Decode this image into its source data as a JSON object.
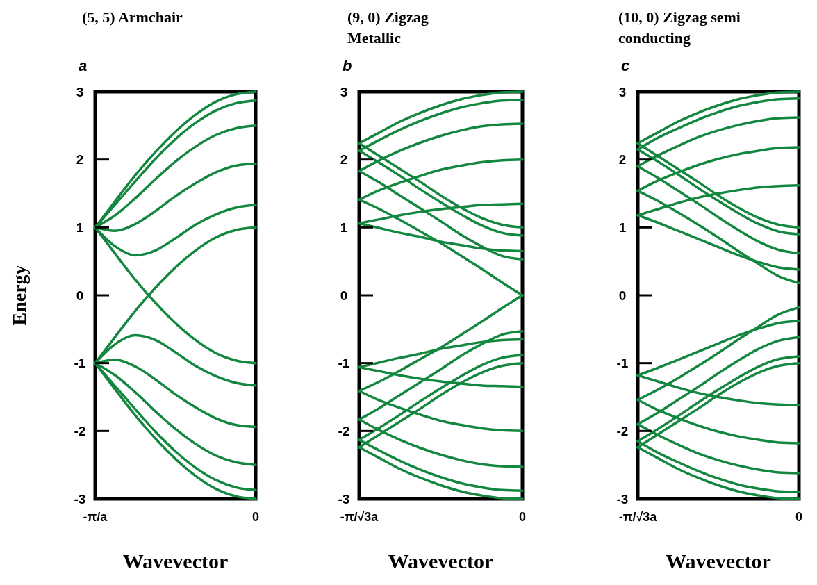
{
  "chart_data": [
    {
      "type": "line",
      "title": "(5, 5) Armchair",
      "xlabel": "Wavevector",
      "ylabel": "Energy",
      "annotations": [
        "a"
      ],
      "color": "#13873f",
      "categories": [
        "-π/a",
        null,
        null,
        null,
        null,
        null,
        null,
        null,
        "0"
      ],
      "ylim": [
        -3,
        3
      ],
      "yticks": [
        -3,
        -2,
        -1,
        0,
        1,
        2,
        3
      ],
      "series": [
        {
          "values": [
            1,
            1.39,
            1.77,
            2.11,
            2.41,
            2.66,
            2.85,
            2.96,
            3
          ]
        },
        {
          "values": [
            1,
            1.34,
            1.68,
            2.01,
            2.3,
            2.54,
            2.72,
            2.83,
            2.87
          ]
        },
        {
          "values": [
            1,
            1.18,
            1.43,
            1.71,
            1.97,
            2.19,
            2.36,
            2.46,
            2.5
          ]
        },
        {
          "values": [
            1,
            0.95,
            1.05,
            1.24,
            1.46,
            1.65,
            1.81,
            1.91,
            1.94
          ]
        },
        {
          "values": [
            1,
            0.72,
            0.59,
            0.66,
            0.84,
            1.04,
            1.19,
            1.29,
            1.33
          ]
        },
        {
          "values": [
            1,
            0.61,
            0.23,
            -0.11,
            -0.41,
            -0.66,
            -0.85,
            -0.96,
            -1
          ]
        },
        {
          "values": [
            -1,
            -1.39,
            -1.77,
            -2.11,
            -2.41,
            -2.66,
            -2.85,
            -2.96,
            -3
          ]
        },
        {
          "values": [
            -1,
            -1.34,
            -1.68,
            -2.01,
            -2.3,
            -2.54,
            -2.72,
            -2.83,
            -2.87
          ]
        },
        {
          "values": [
            -1,
            -1.18,
            -1.43,
            -1.71,
            -1.97,
            -2.19,
            -2.36,
            -2.46,
            -2.5
          ]
        },
        {
          "values": [
            -1,
            -0.95,
            -1.05,
            -1.24,
            -1.46,
            -1.65,
            -1.81,
            -1.91,
            -1.94
          ]
        },
        {
          "values": [
            -1,
            -0.72,
            -0.59,
            -0.66,
            -0.84,
            -1.04,
            -1.19,
            -1.29,
            -1.33
          ]
        },
        {
          "values": [
            -1,
            -0.61,
            -0.23,
            0.11,
            0.41,
            0.66,
            0.85,
            0.96,
            1
          ]
        }
      ]
    },
    {
      "type": "line",
      "title": "(9, 0) Zigzag Metallic",
      "xlabel": "Wavevector",
      "annotations": [
        "b"
      ],
      "color": "#13873f",
      "categories": [
        "-π/√3a",
        null,
        null,
        null,
        null,
        null,
        null,
        null,
        "0"
      ],
      "ylim": [
        -3,
        3
      ],
      "yticks": [
        -3,
        -2,
        -1,
        0,
        1,
        2,
        3
      ],
      "series": [
        {
          "values": [
            2.24,
            2.4,
            2.56,
            2.69,
            2.8,
            2.89,
            2.95,
            2.99,
            3
          ]
        },
        {
          "values": [
            2.13,
            2.29,
            2.44,
            2.57,
            2.68,
            2.77,
            2.83,
            2.87,
            2.88
          ]
        },
        {
          "values": [
            1.83,
            1.99,
            2.13,
            2.25,
            2.35,
            2.43,
            2.49,
            2.52,
            2.53
          ]
        },
        {
          "values": [
            1.41,
            1.55,
            1.66,
            1.76,
            1.85,
            1.91,
            1.96,
            1.99,
            2
          ]
        },
        {
          "values": [
            1.06,
            1.12,
            1.18,
            1.23,
            1.27,
            1.3,
            1.33,
            1.34,
            1.35
          ]
        },
        {
          "values": [
            1.06,
            0.99,
            0.92,
            0.86,
            0.79,
            0.74,
            0.69,
            0.66,
            0.65
          ]
        },
        {
          "values": [
            1.41,
            1.27,
            1.11,
            0.94,
            0.77,
            0.58,
            0.39,
            0.19,
            0
          ]
        },
        {
          "values": [
            1.83,
            1.66,
            1.47,
            1.28,
            1.09,
            0.89,
            0.72,
            0.58,
            0.53
          ]
        },
        {
          "values": [
            2.13,
            1.95,
            1.76,
            1.56,
            1.37,
            1.19,
            1.03,
            0.92,
            0.88
          ]
        },
        {
          "values": [
            2.24,
            2.05,
            1.86,
            1.67,
            1.47,
            1.29,
            1.14,
            1.04,
            1
          ]
        },
        {
          "values": [
            -2.24,
            -2.4,
            -2.56,
            -2.69,
            -2.8,
            -2.89,
            -2.95,
            -2.99,
            -3
          ]
        },
        {
          "values": [
            -2.13,
            -2.29,
            -2.44,
            -2.57,
            -2.68,
            -2.77,
            -2.83,
            -2.87,
            -2.88
          ]
        },
        {
          "values": [
            -1.83,
            -1.99,
            -2.13,
            -2.25,
            -2.35,
            -2.43,
            -2.49,
            -2.52,
            -2.53
          ]
        },
        {
          "values": [
            -1.41,
            -1.55,
            -1.66,
            -1.76,
            -1.85,
            -1.91,
            -1.96,
            -1.99,
            -2
          ]
        },
        {
          "values": [
            -1.06,
            -1.12,
            -1.18,
            -1.23,
            -1.27,
            -1.3,
            -1.33,
            -1.34,
            -1.35
          ]
        },
        {
          "values": [
            -1.06,
            -0.99,
            -0.92,
            -0.86,
            -0.79,
            -0.74,
            -0.69,
            -0.66,
            -0.65
          ]
        },
        {
          "values": [
            -1.41,
            -1.27,
            -1.11,
            -0.94,
            -0.77,
            -0.58,
            -0.39,
            -0.19,
            0
          ]
        },
        {
          "values": [
            -1.83,
            -1.66,
            -1.47,
            -1.28,
            -1.09,
            -0.89,
            -0.72,
            -0.58,
            -0.53
          ]
        },
        {
          "values": [
            -2.13,
            -1.95,
            -1.76,
            -1.56,
            -1.37,
            -1.19,
            -1.03,
            -0.92,
            -0.88
          ]
        },
        {
          "values": [
            -2.24,
            -2.05,
            -1.86,
            -1.67,
            -1.47,
            -1.29,
            -1.14,
            -1.04,
            -1
          ]
        }
      ]
    },
    {
      "type": "line",
      "title": "(10, 0) Zigzag semi conducting",
      "xlabel": "Wavevector",
      "annotations": [
        "c"
      ],
      "color": "#13873f",
      "categories": [
        "-π/√3a",
        null,
        null,
        null,
        null,
        null,
        null,
        null,
        "0"
      ],
      "ylim": [
        -3,
        3
      ],
      "yticks": [
        -3,
        -2,
        -1,
        0,
        1,
        2,
        3
      ],
      "series": [
        {
          "values": [
            2.24,
            2.4,
            2.56,
            2.69,
            2.8,
            2.89,
            2.95,
            2.99,
            3
          ]
        },
        {
          "values": [
            2.15,
            2.32,
            2.46,
            2.59,
            2.7,
            2.79,
            2.85,
            2.89,
            2.9
          ]
        },
        {
          "values": [
            1.9,
            2.06,
            2.2,
            2.33,
            2.43,
            2.51,
            2.57,
            2.61,
            2.62
          ]
        },
        {
          "values": [
            1.54,
            1.69,
            1.81,
            1.92,
            2.01,
            2.08,
            2.13,
            2.17,
            2.18
          ]
        },
        {
          "values": [
            1.18,
            1.27,
            1.36,
            1.44,
            1.5,
            1.55,
            1.59,
            1.61,
            1.62
          ]
        },
        {
          "values": [
            1.18,
            1.07,
            0.95,
            0.83,
            0.71,
            0.59,
            0.49,
            0.41,
            0.38
          ]
        },
        {
          "values": [
            1.54,
            1.39,
            1.22,
            1.04,
            0.85,
            0.65,
            0.46,
            0.28,
            0.18
          ]
        },
        {
          "values": [
            1.9,
            1.73,
            1.54,
            1.35,
            1.15,
            0.96,
            0.79,
            0.67,
            0.62
          ]
        },
        {
          "values": [
            2.15,
            1.97,
            1.78,
            1.58,
            1.39,
            1.21,
            1.05,
            0.94,
            0.9
          ]
        },
        {
          "values": [
            2.24,
            2.05,
            1.86,
            1.67,
            1.47,
            1.29,
            1.14,
            1.04,
            1
          ]
        },
        {
          "values": [
            -2.24,
            -2.4,
            -2.56,
            -2.69,
            -2.8,
            -2.89,
            -2.95,
            -2.99,
            -3
          ]
        },
        {
          "values": [
            -2.15,
            -2.32,
            -2.46,
            -2.59,
            -2.7,
            -2.79,
            -2.85,
            -2.89,
            -2.9
          ]
        },
        {
          "values": [
            -1.9,
            -2.06,
            -2.2,
            -2.33,
            -2.43,
            -2.51,
            -2.57,
            -2.61,
            -2.62
          ]
        },
        {
          "values": [
            -1.54,
            -1.69,
            -1.81,
            -1.92,
            -2.01,
            -2.08,
            -2.13,
            -2.17,
            -2.18
          ]
        },
        {
          "values": [
            -1.18,
            -1.27,
            -1.36,
            -1.44,
            -1.5,
            -1.55,
            -1.59,
            -1.61,
            -1.62
          ]
        },
        {
          "values": [
            -1.18,
            -1.07,
            -0.95,
            -0.83,
            -0.71,
            -0.59,
            -0.49,
            -0.41,
            -0.38
          ]
        },
        {
          "values": [
            -1.54,
            -1.39,
            -1.22,
            -1.04,
            -0.85,
            -0.65,
            -0.46,
            -0.28,
            -0.18
          ]
        },
        {
          "values": [
            -1.9,
            -1.73,
            -1.54,
            -1.35,
            -1.15,
            -0.96,
            -0.79,
            -0.67,
            -0.62
          ]
        },
        {
          "values": [
            -2.15,
            -1.97,
            -1.78,
            -1.58,
            -1.39,
            -1.21,
            -1.05,
            -0.94,
            -0.9
          ]
        },
        {
          "values": [
            -2.24,
            -2.05,
            -1.86,
            -1.67,
            -1.47,
            -1.29,
            -1.14,
            -1.04,
            -1
          ]
        }
      ]
    }
  ]
}
